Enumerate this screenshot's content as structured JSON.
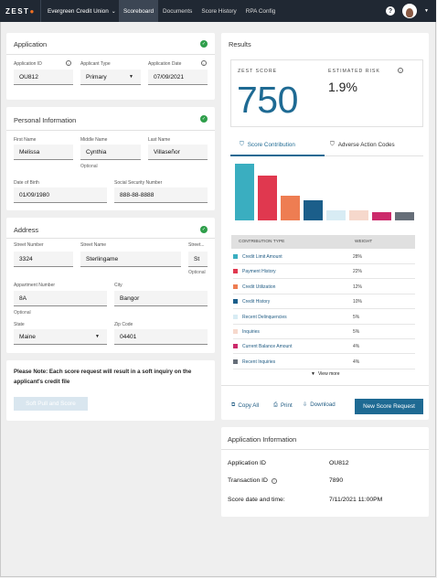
{
  "nav": {
    "logo": "ZEST",
    "org": "Evergreen Credit Union",
    "links": [
      "Scoreboard",
      "Documents",
      "Score History",
      "RPA Config"
    ],
    "help": "?"
  },
  "application": {
    "title": "Application",
    "id_label": "Application ID",
    "id_value": "OU812",
    "type_label": "Applicant Type",
    "type_value": "Primary",
    "date_label": "Application Date",
    "date_value": "07/09/2021"
  },
  "personal": {
    "title": "Personal Information",
    "first_label": "First Name",
    "first_value": "Melissa",
    "middle_label": "Middle Name",
    "middle_value": "Cynthia",
    "middle_help": "Optional",
    "last_label": "Last Name",
    "last_value": "Villaseñor",
    "dob_label": "Date of Birth",
    "dob_value": "01/09/1980",
    "ssn_label": "Social Security Number",
    "ssn_value": "888-88-8888"
  },
  "address": {
    "title": "Address",
    "street_num_label": "Street Number",
    "street_num_value": "3324",
    "street_name_label": "Street Name",
    "street_name_value": "Sterlingame",
    "street_type_label": "Street...",
    "street_type_value": "St",
    "street_type_help": "Optional",
    "apt_label": "Appartment Number",
    "apt_value": "8A",
    "apt_help": "Optional",
    "city_label": "City",
    "city_value": "Bangor",
    "state_label": "State",
    "state_value": "Maine",
    "zip_label": "Zip Code",
    "zip_value": "04401"
  },
  "submit": {
    "note": "Please Note: Each score request will result in a soft inquiry on the applicant's credit file",
    "button": "Soft Pull and Score"
  },
  "results": {
    "title": "Results",
    "score_label": "ZEST SCORE",
    "score_value": "750",
    "risk_label": "ESTIMATED RISK",
    "risk_value": "1.9%",
    "tabs": [
      "Score Contribution",
      "Adverse Action Codes"
    ],
    "col_type": "CONTRIBUTION TYPE",
    "col_weight": "WEIGHT",
    "view_more": "View more",
    "copy_all": "Copy All",
    "print": "Print",
    "download": "Download",
    "new_request": "New Score Request"
  },
  "chart_data": {
    "type": "bar",
    "categories": [
      "Credit Limit Amount",
      "Payment History",
      "Credit Utilization",
      "Credit History",
      "Recent Delinquencies",
      "Inquiries",
      "Current Balance Amount",
      "Recent Inquiries"
    ],
    "values": [
      28,
      22,
      12,
      10,
      5,
      5,
      4,
      4
    ],
    "weights": [
      "28%",
      "22%",
      "12%",
      "10%",
      "5%",
      "5%",
      "4%",
      "4%"
    ],
    "colors": [
      "#3aaec0",
      "#e0384f",
      "#ee7d52",
      "#1b5e8a",
      "#d8ecf4",
      "#f6d8cc",
      "#cc2a6b",
      "#666e78"
    ],
    "ylim": [
      0,
      28
    ]
  },
  "app_info": {
    "title": "Application Information",
    "rows": [
      {
        "label": "Application ID",
        "value": "OU812"
      },
      {
        "label": "Transaction ID",
        "value": "7890"
      },
      {
        "label": "Score date and time:",
        "value": "7/11/2021 11:00PM"
      }
    ]
  }
}
